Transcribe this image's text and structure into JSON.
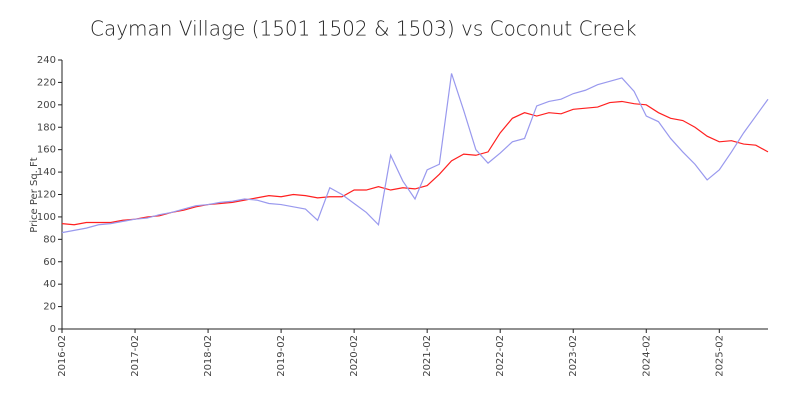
{
  "chart_data": {
    "type": "line",
    "title": "Cayman Village (1501 1502 & 1503) vs Coconut Creek",
    "y_label": "Price Per Sq. Ft",
    "x": [
      "2016-02",
      "2016-04",
      "2016-06",
      "2016-08",
      "2016-10",
      "2016-12",
      "2017-02",
      "2017-04",
      "2017-06",
      "2017-08",
      "2017-10",
      "2017-12",
      "2018-02",
      "2018-04",
      "2018-06",
      "2018-08",
      "2018-10",
      "2018-12",
      "2019-02",
      "2019-04",
      "2019-06",
      "2019-08",
      "2019-10",
      "2019-12",
      "2020-02",
      "2020-04",
      "2020-06",
      "2020-08",
      "2020-10",
      "2020-12",
      "2021-02",
      "2021-04",
      "2021-06",
      "2021-08",
      "2021-10",
      "2021-12",
      "2022-02",
      "2022-04",
      "2022-06",
      "2022-08",
      "2022-10",
      "2022-12",
      "2023-02",
      "2023-04",
      "2023-06",
      "2023-08",
      "2023-10",
      "2023-12",
      "2024-02",
      "2024-04",
      "2024-06",
      "2024-08",
      "2024-10",
      "2024-12",
      "2025-02",
      "2025-04",
      "2025-06",
      "2025-08",
      "2025-10"
    ],
    "series": [
      {
        "color": "#ff2020",
        "values": [
          94,
          93,
          95,
          95,
          95,
          97,
          98,
          100,
          101,
          104,
          106,
          109,
          111,
          112,
          113,
          115,
          117,
          119,
          118,
          120,
          119,
          117,
          118,
          118,
          124,
          124,
          127,
          124,
          126,
          125,
          128,
          138,
          150,
          156,
          155,
          158,
          175,
          188,
          193,
          190,
          193,
          192,
          196,
          197,
          198,
          202,
          203,
          201,
          200,
          193,
          188,
          186,
          180,
          172,
          167,
          168,
          165,
          164,
          158
        ]
      },
      {
        "color": "#9999ee",
        "values": [
          86,
          88,
          90,
          93,
          94,
          96,
          98,
          99,
          102,
          104,
          107,
          110,
          111,
          113,
          114,
          116,
          115,
          112,
          111,
          109,
          107,
          97,
          126,
          120,
          112,
          104,
          93,
          155,
          132,
          116,
          142,
          147,
          228,
          195,
          160,
          148,
          157,
          167,
          170,
          199,
          203,
          205,
          210,
          213,
          218,
          221,
          224,
          212,
          190,
          185,
          170,
          158,
          147,
          133,
          142,
          158,
          175,
          190,
          205
        ]
      }
    ],
    "xlim": [
      "2016-02",
      "2025-10"
    ],
    "xticks": [
      "2016-02",
      "2017-02",
      "2018-02",
      "2019-02",
      "2020-02",
      "2021-02",
      "2022-02",
      "2023-02",
      "2024-02",
      "2025-02"
    ],
    "ylim": [
      0,
      240
    ],
    "yticks": [
      0,
      20,
      40,
      60,
      80,
      100,
      120,
      140,
      160,
      180,
      200,
      220,
      240
    ]
  }
}
